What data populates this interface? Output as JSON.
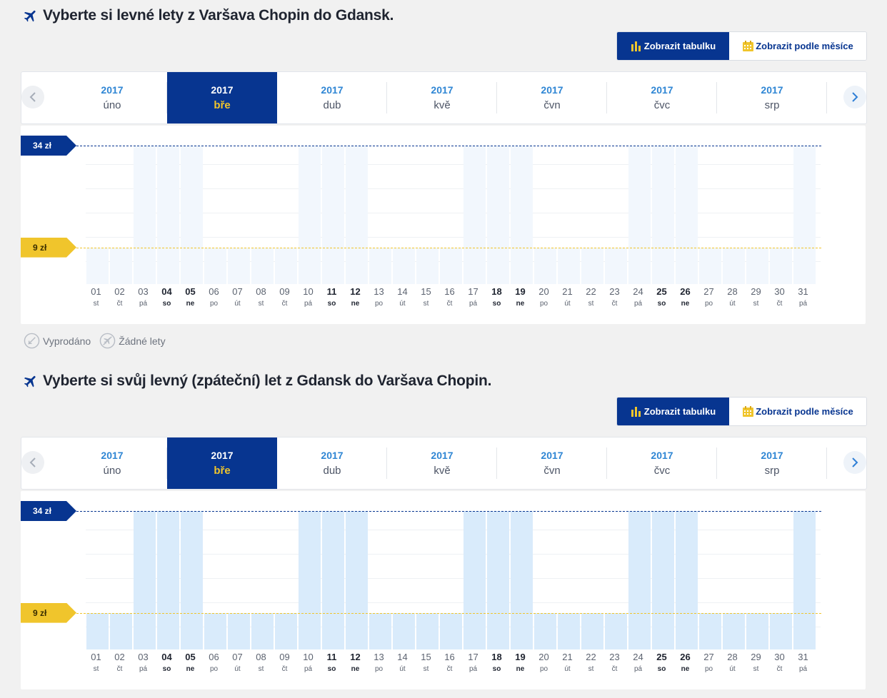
{
  "colors": {
    "brand_blue": "#073590",
    "accent_yellow": "#f0c52c",
    "bar_light": "#f2f7fd",
    "bar_medium": "#d9ebfb",
    "link_blue": "#2f86d4"
  },
  "legend": {
    "sold_out": "Vyprodáno",
    "no_flights": "Žádné lety"
  },
  "sections": [
    {
      "title": "Vyberte si levné lety z Varšava Chopin do Gdansk.",
      "toggle": {
        "table_label": "Zobrazit tabulku",
        "month_label": "Zobrazit podle měsíce"
      },
      "months": [
        {
          "year": "2017",
          "month": "úno"
        },
        {
          "year": "2017",
          "month": "bře",
          "selected": true
        },
        {
          "year": "2017",
          "month": "dub"
        },
        {
          "year": "2017",
          "month": "kvě"
        },
        {
          "year": "2017",
          "month": "čvn"
        },
        {
          "year": "2017",
          "month": "čvc"
        },
        {
          "year": "2017",
          "month": "srp"
        }
      ],
      "chart_data": {
        "type": "bar",
        "max_price_label": "34 zł",
        "min_price_label": "9 zł",
        "bar_color": "#f2f7fd",
        "categories": [
          "01",
          "02",
          "03",
          "04",
          "05",
          "06",
          "07",
          "08",
          "09",
          "10",
          "11",
          "12",
          "13",
          "14",
          "15",
          "16",
          "17",
          "18",
          "19",
          "20",
          "21",
          "22",
          "23",
          "24",
          "25",
          "26",
          "27",
          "28",
          "29",
          "30",
          "31"
        ],
        "weekdays": [
          "st",
          "čt",
          "pá",
          "so",
          "ne",
          "po",
          "út",
          "st",
          "čt",
          "pá",
          "so",
          "ne",
          "po",
          "út",
          "st",
          "čt",
          "pá",
          "so",
          "ne",
          "po",
          "út",
          "st",
          "čt",
          "pá",
          "so",
          "ne",
          "po",
          "út",
          "st",
          "čt",
          "pá"
        ],
        "values": [
          9,
          9,
          34,
          34,
          34,
          9,
          9,
          9,
          9,
          34,
          34,
          34,
          9,
          9,
          9,
          9,
          34,
          34,
          34,
          9,
          9,
          9,
          9,
          34,
          34,
          34,
          9,
          9,
          9,
          9,
          34
        ],
        "ylim": [
          0,
          34
        ]
      }
    },
    {
      "title": "Vyberte si svůj levný (zpáteční) let z Gdansk do Varšava Chopin.",
      "toggle": {
        "table_label": "Zobrazit tabulku",
        "month_label": "Zobrazit podle měsíce"
      },
      "months": [
        {
          "year": "2017",
          "month": "úno"
        },
        {
          "year": "2017",
          "month": "bře",
          "selected": true
        },
        {
          "year": "2017",
          "month": "dub"
        },
        {
          "year": "2017",
          "month": "kvě"
        },
        {
          "year": "2017",
          "month": "čvn"
        },
        {
          "year": "2017",
          "month": "čvc"
        },
        {
          "year": "2017",
          "month": "srp"
        }
      ],
      "chart_data": {
        "type": "bar",
        "max_price_label": "34 zł",
        "min_price_label": "9 zł",
        "bar_color": "#d9ebfb",
        "categories": [
          "01",
          "02",
          "03",
          "04",
          "05",
          "06",
          "07",
          "08",
          "09",
          "10",
          "11",
          "12",
          "13",
          "14",
          "15",
          "16",
          "17",
          "18",
          "19",
          "20",
          "21",
          "22",
          "23",
          "24",
          "25",
          "26",
          "27",
          "28",
          "29",
          "30",
          "31"
        ],
        "weekdays": [
          "st",
          "čt",
          "pá",
          "so",
          "ne",
          "po",
          "út",
          "st",
          "čt",
          "pá",
          "so",
          "ne",
          "po",
          "út",
          "st",
          "čt",
          "pá",
          "so",
          "ne",
          "po",
          "út",
          "st",
          "čt",
          "pá",
          "so",
          "ne",
          "po",
          "út",
          "st",
          "čt",
          "pá"
        ],
        "values": [
          9,
          9,
          34,
          34,
          34,
          9,
          9,
          9,
          9,
          34,
          34,
          34,
          9,
          9,
          9,
          9,
          34,
          34,
          34,
          9,
          9,
          9,
          9,
          34,
          34,
          34,
          9,
          9,
          9,
          9,
          34
        ],
        "ylim": [
          0,
          34
        ]
      }
    }
  ]
}
